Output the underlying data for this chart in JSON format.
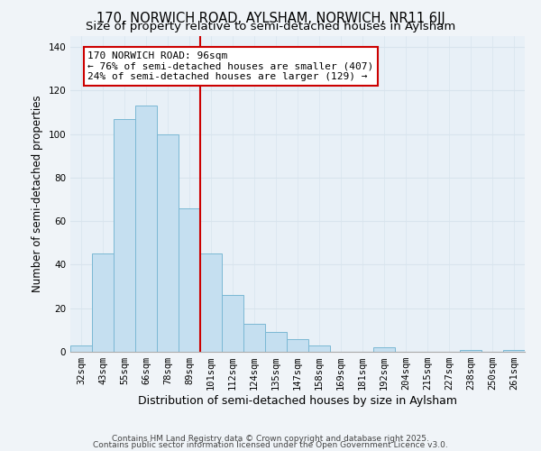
{
  "title": "170, NORWICH ROAD, AYLSHAM, NORWICH, NR11 6JJ",
  "subtitle": "Size of property relative to semi-detached houses in Aylsham",
  "xlabel": "Distribution of semi-detached houses by size in Aylsham",
  "ylabel": "Number of semi-detached properties",
  "bar_labels": [
    "32sqm",
    "43sqm",
    "55sqm",
    "66sqm",
    "78sqm",
    "89sqm",
    "101sqm",
    "112sqm",
    "124sqm",
    "135sqm",
    "147sqm",
    "158sqm",
    "169sqm",
    "181sqm",
    "192sqm",
    "204sqm",
    "215sqm",
    "227sqm",
    "238sqm",
    "250sqm",
    "261sqm"
  ],
  "bar_values": [
    3,
    45,
    107,
    113,
    100,
    66,
    45,
    26,
    13,
    9,
    6,
    3,
    0,
    0,
    2,
    0,
    0,
    0,
    1,
    0,
    1
  ],
  "bar_color": "#c5dff0",
  "bar_edge_color": "#7bb8d4",
  "vline_x_index": 6,
  "vline_color": "#cc0000",
  "annotation_title": "170 NORWICH ROAD: 96sqm",
  "annotation_line1": "← 76% of semi-detached houses are smaller (407)",
  "annotation_line2": "24% of semi-detached houses are larger (129) →",
  "annotation_box_color": "#ffffff",
  "annotation_box_edge": "#cc0000",
  "ylim": [
    0,
    145
  ],
  "yticks": [
    0,
    20,
    40,
    60,
    80,
    100,
    120,
    140
  ],
  "footer1": "Contains HM Land Registry data © Crown copyright and database right 2025.",
  "footer2": "Contains public sector information licensed under the Open Government Licence v3.0.",
  "title_fontsize": 10.5,
  "subtitle_fontsize": 9.5,
  "ylabel_fontsize": 8.5,
  "xlabel_fontsize": 9,
  "tick_fontsize": 7.5,
  "annotation_fontsize": 8,
  "footer_fontsize": 6.5,
  "background_color": "#f0f4f8",
  "grid_color": "#d8e4ed",
  "plot_bg_color": "#e8f0f7"
}
